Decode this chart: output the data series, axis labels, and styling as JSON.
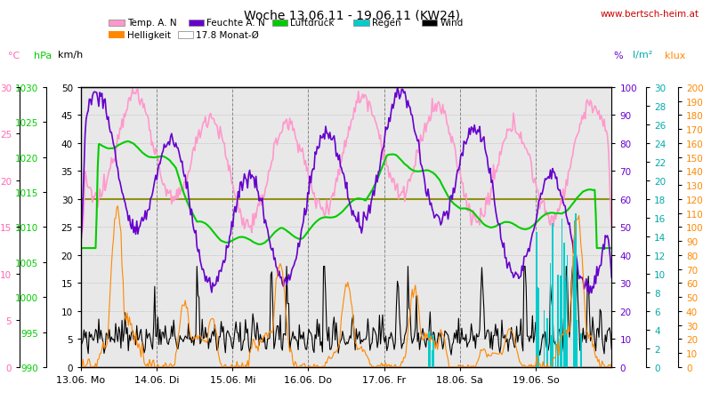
{
  "title": "Woche 13.06.11 - 19.06.11 (KW24)",
  "url": "www.bertsch-heim.at",
  "monat_avg_temp": 17.8,
  "monat_avg_kmh": 30.0,
  "x_labels": [
    "13.06. Mo",
    "14.06. Di",
    "15.06. Mi",
    "16.06. Do",
    "17.06. Fr",
    "18.06. Sa",
    "19.06. So"
  ],
  "temp_color": "#ff99cc",
  "humidity_color": "#6600cc",
  "pressure_color": "#00cc00",
  "wind_color": "#000000",
  "brightness_color": "#ff8800",
  "rain_color": "#00cccc",
  "avg_color": "#888800",
  "grid_color": "#aaaaaa",
  "plot_bg": "#e8e8e8",
  "kmh_ticks": [
    0.0,
    5.0,
    10.0,
    15.0,
    20.0,
    25.0,
    30.0,
    35.0,
    40.0,
    45.0,
    50.0
  ],
  "hpa_ticks": [
    990,
    995,
    1000,
    1005,
    1010,
    1015,
    1020,
    1025,
    1030
  ],
  "temp_ticks": [
    0.0,
    5.0,
    10.0,
    15.0,
    20.0,
    25.0,
    30.0
  ],
  "pct_ticks": [
    0,
    10,
    20,
    30,
    40,
    50,
    60,
    70,
    80,
    90,
    100
  ],
  "rain_ticks": [
    0.0,
    2.0,
    4.0,
    6.0,
    8.0,
    10.0,
    12.0,
    14.0,
    16.0,
    18.0,
    20.0,
    22.0,
    24.0,
    26.0,
    28.0,
    30.0
  ],
  "klux_ticks": [
    0,
    10,
    20,
    30,
    40,
    50,
    60,
    70,
    80,
    90,
    100,
    110,
    120,
    130,
    140,
    150,
    160,
    170,
    180,
    190,
    200
  ]
}
